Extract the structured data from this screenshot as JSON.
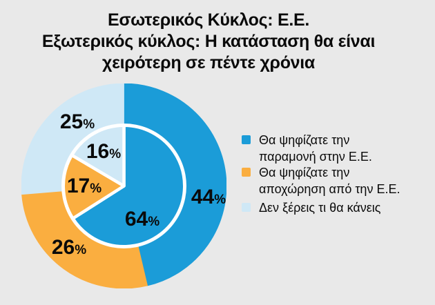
{
  "title": {
    "lines": [
      "Εσωτερικός Κύκλος: Ε.Ε.",
      "Εξωτερικός κύκλος: Η κατάσταση θα είναι",
      "χειρότερη σε πέντε χρόνια"
    ]
  },
  "chart_data": {
    "type": "pie",
    "subtype": "nested-pie",
    "title": "Εσωτερικός Κύκλος: Ε.Ε. / Εξωτερικός κύκλος: Η κατάσταση θα είναι χειρότερη σε πέντε χρόνια",
    "categories": [
      "Θα ψηφίζατε την παραμονή στην Ε.Ε.",
      "Θα ψηφίζατε την αποχώρηση από την Ε.Ε.",
      "Δεν ξέρεις τι θα κάνεις"
    ],
    "colors": [
      "#1b9cd8",
      "#faae40",
      "#cfe8f6"
    ],
    "series": [
      {
        "name": "inner",
        "description": "Εσωτερικός Κύκλος: Ε.Ε.",
        "values": [
          64,
          17,
          16
        ],
        "labels": [
          "64%",
          "17%",
          "16%"
        ]
      },
      {
        "name": "outer",
        "description": "Εξωτερικός κύκλος: Η κατάσταση θα είναι χειρότερη σε πέντε χρόνια",
        "values": [
          44,
          26,
          25
        ],
        "labels": [
          "44%",
          "26%",
          "25%"
        ]
      }
    ],
    "start_angle_deg": 0,
    "direction": "clockwise",
    "legend_position": "right",
    "separator_color": "#ffffff"
  },
  "labels": {
    "inner": [
      {
        "value": "64",
        "unit": "%"
      },
      {
        "value": "17",
        "unit": "%"
      },
      {
        "value": "16",
        "unit": "%"
      }
    ],
    "outer": [
      {
        "value": "44",
        "unit": "%"
      },
      {
        "value": "26",
        "unit": "%"
      },
      {
        "value": "25",
        "unit": "%"
      }
    ]
  },
  "legend": {
    "items": [
      {
        "color": "#1b9cd8",
        "lines": [
          "Θα ψηφίζατε την",
          "παραμονή στην Ε.Ε."
        ]
      },
      {
        "color": "#faae40",
        "lines": [
          "Θα ψηφίζατε την",
          "αποχώρηση από την Ε.Ε."
        ]
      },
      {
        "color": "#cfe8f6",
        "lines": [
          "Δεν ξέρεις τι θα κάνεις"
        ]
      }
    ]
  },
  "palette": {
    "background": "#e9e9e9",
    "text": "#0a0a0a",
    "separator": "#ffffff"
  }
}
